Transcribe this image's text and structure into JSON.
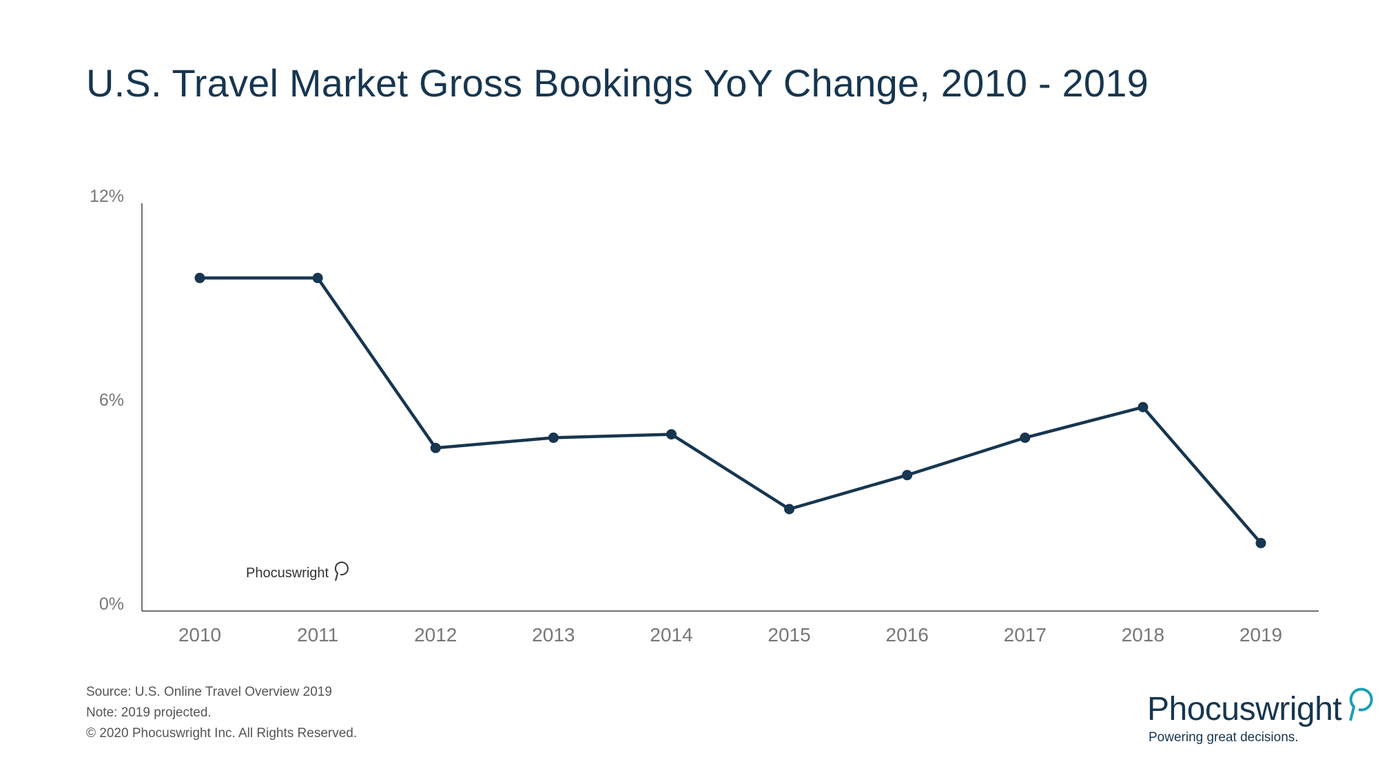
{
  "chart_data": {
    "type": "line",
    "title": "U.S. Travel Market Gross Bookings YoY Change, 2010 - 2019",
    "xlabel": "",
    "ylabel": "",
    "categories": [
      "2010",
      "2011",
      "2012",
      "2013",
      "2014",
      "2015",
      "2016",
      "2017",
      "2018",
      "2019"
    ],
    "series": [
      {
        "name": "Gross Bookings YoY Change",
        "values": [
          9.8,
          9.8,
          4.8,
          5.1,
          5.2,
          3.0,
          4.0,
          5.1,
          6.0,
          2.0
        ]
      }
    ],
    "ylim": [
      0,
      12
    ],
    "yticks": [
      0,
      6,
      12
    ],
    "ytick_labels": [
      "0%",
      "6%",
      "12%"
    ],
    "grid": false,
    "legend": "none",
    "line_color": "#173650"
  },
  "footer": {
    "source": "Source: U.S. Online Travel Overview 2019",
    "note": "Note: 2019 projected.",
    "copyright": "© 2020  Phocuswright Inc. All Rights Reserved."
  },
  "brand": {
    "name": "Phocuswright",
    "tagline": "Powering great decisions.",
    "accent_color": "#1a9fb5"
  },
  "watermark": {
    "name": "Phocuswright"
  }
}
